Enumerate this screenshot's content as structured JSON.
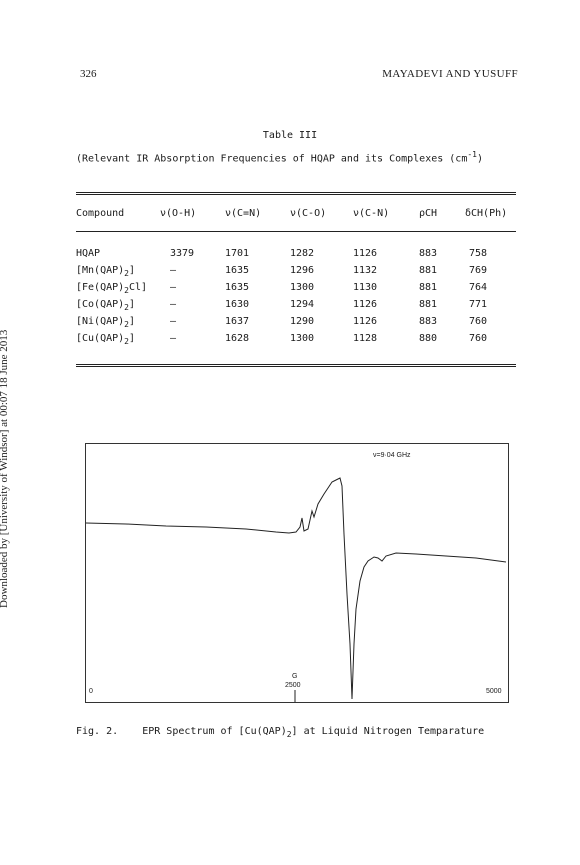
{
  "side_note": "Downloaded by [University of Windsor] at 00:07 18 June 2013",
  "header": {
    "page_number": "326",
    "running_head": "MAYADEVI AND YUSUFF"
  },
  "table": {
    "title": "Table III",
    "caption_main": "(Relevant IR Absorption Frequencies of HQAP and its Complexes (cm",
    "caption_sup": "-1",
    "caption_end": ")",
    "columns": [
      "Compound",
      "ν(O-H)",
      "ν(C=N)",
      "ν(C-O)",
      "ν(C-N)",
      "ρCH",
      "δCH(Ph)"
    ],
    "rows": [
      {
        "compound": "HQAP",
        "sub": "",
        "tail": "",
        "values": [
          "3379",
          "1701",
          "1282",
          "1126",
          "883",
          "758"
        ]
      },
      {
        "compound": "[Mn(QAP)",
        "sub": "2",
        "tail": "]",
        "values": [
          "—",
          "1635",
          "1296",
          "1132",
          "881",
          "769"
        ]
      },
      {
        "compound": "[Fe(QAP)",
        "sub": "2",
        "tail": "Cl]",
        "values": [
          "—",
          "1635",
          "1300",
          "1130",
          "881",
          "764"
        ]
      },
      {
        "compound": "[Co(QAP)",
        "sub": "2",
        "tail": "]",
        "values": [
          "—",
          "1630",
          "1294",
          "1126",
          "881",
          "771"
        ]
      },
      {
        "compound": "[Ni(QAP)",
        "sub": "2",
        "tail": "]",
        "values": [
          "—",
          "1637",
          "1290",
          "1126",
          "883",
          "760"
        ]
      },
      {
        "compound": "[Cu(QAP)",
        "sub": "2",
        "tail": "]",
        "values": [
          "—",
          "1628",
          "1300",
          "1128",
          "880",
          "760"
        ]
      }
    ]
  },
  "figure": {
    "frequency_label": "ν=9·04 GHz",
    "tick_left": "0",
    "tick_mid_unit": "G",
    "tick_mid": "2500",
    "tick_right": "5000",
    "caption_pre": "Fig. 2.    EPR Spectrum of [Cu(QAP)",
    "caption_sub": "2",
    "caption_post": "] at Liquid Nitrogen Temparature"
  }
}
